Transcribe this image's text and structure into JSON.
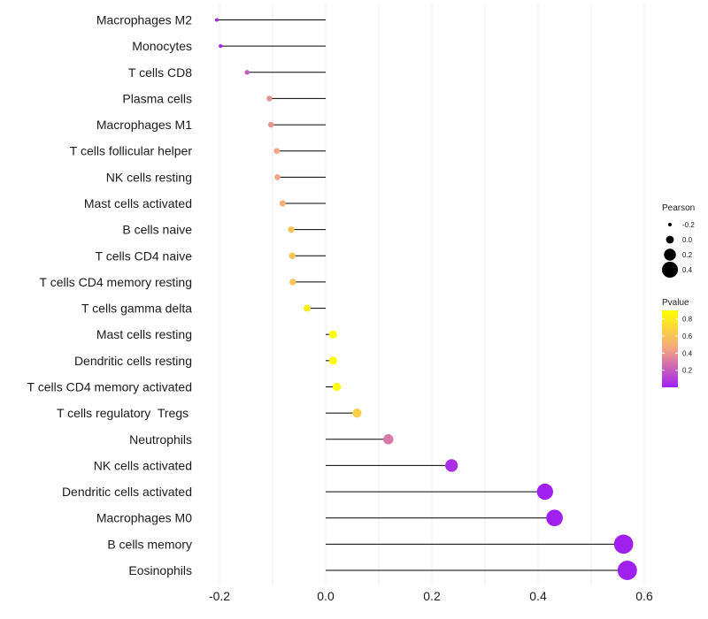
{
  "chart_data": {
    "type": "lollipop",
    "title": "",
    "xlabel": "",
    "ylabel": "",
    "xlim": [
      -0.2,
      0.6
    ],
    "x_ticks": [
      -0.2,
      0.0,
      0.2,
      0.4,
      0.6
    ],
    "x_tick_labels": [
      "-0.2",
      "0.0",
      "0.2",
      "0.4",
      "0.6"
    ],
    "grid": true,
    "categories": [
      "Macrophages M2",
      "Monocytes",
      "T cells CD8",
      "Plasma cells",
      "Macrophages M1",
      "T cells follicular helper",
      "NK cells resting",
      "Mast cells activated",
      "B cells naive",
      "T cells CD4 naive",
      "T cells CD4 memory resting",
      "T cells gamma delta",
      "Mast cells resting",
      "Dendritic cells resting",
      "T cells CD4 memory activated",
      "T cells regulatory  Tregs ",
      "Neutrophils",
      "NK cells activated",
      "Dendritic cells activated",
      "Macrophages M0",
      "B cells memory",
      "Eosinophils"
    ],
    "pearson": [
      -0.205,
      -0.198,
      -0.148,
      -0.106,
      -0.103,
      -0.092,
      -0.091,
      -0.081,
      -0.065,
      -0.063,
      -0.062,
      -0.035,
      0.014,
      0.014,
      0.021,
      0.059,
      0.118,
      0.237,
      0.413,
      0.431,
      0.561,
      0.568
    ],
    "pvalue": [
      0.01,
      0.02,
      0.2,
      0.38,
      0.39,
      0.45,
      0.45,
      0.5,
      0.6,
      0.6,
      0.6,
      0.82,
      0.93,
      0.93,
      0.9,
      0.65,
      0.3,
      0.05,
      0.0,
      0.0,
      0.0,
      0.0
    ],
    "size_legend": {
      "title": "Pearson",
      "labels": [
        "-0.2",
        "0.0",
        "0.2",
        "0.4"
      ],
      "values": [
        -0.2,
        0.0,
        0.2,
        0.4
      ]
    },
    "color_legend": {
      "title": "Pvalue",
      "labels": [
        "0.8",
        "0.6",
        "0.4",
        "0.2"
      ],
      "values": [
        0.8,
        0.6,
        0.4,
        0.2
      ],
      "range": [
        0.0,
        0.9
      ],
      "low_color": "#a020f0",
      "mid_color": "#f4a582",
      "high_color": "#ffff00"
    },
    "legend_position": "right"
  }
}
